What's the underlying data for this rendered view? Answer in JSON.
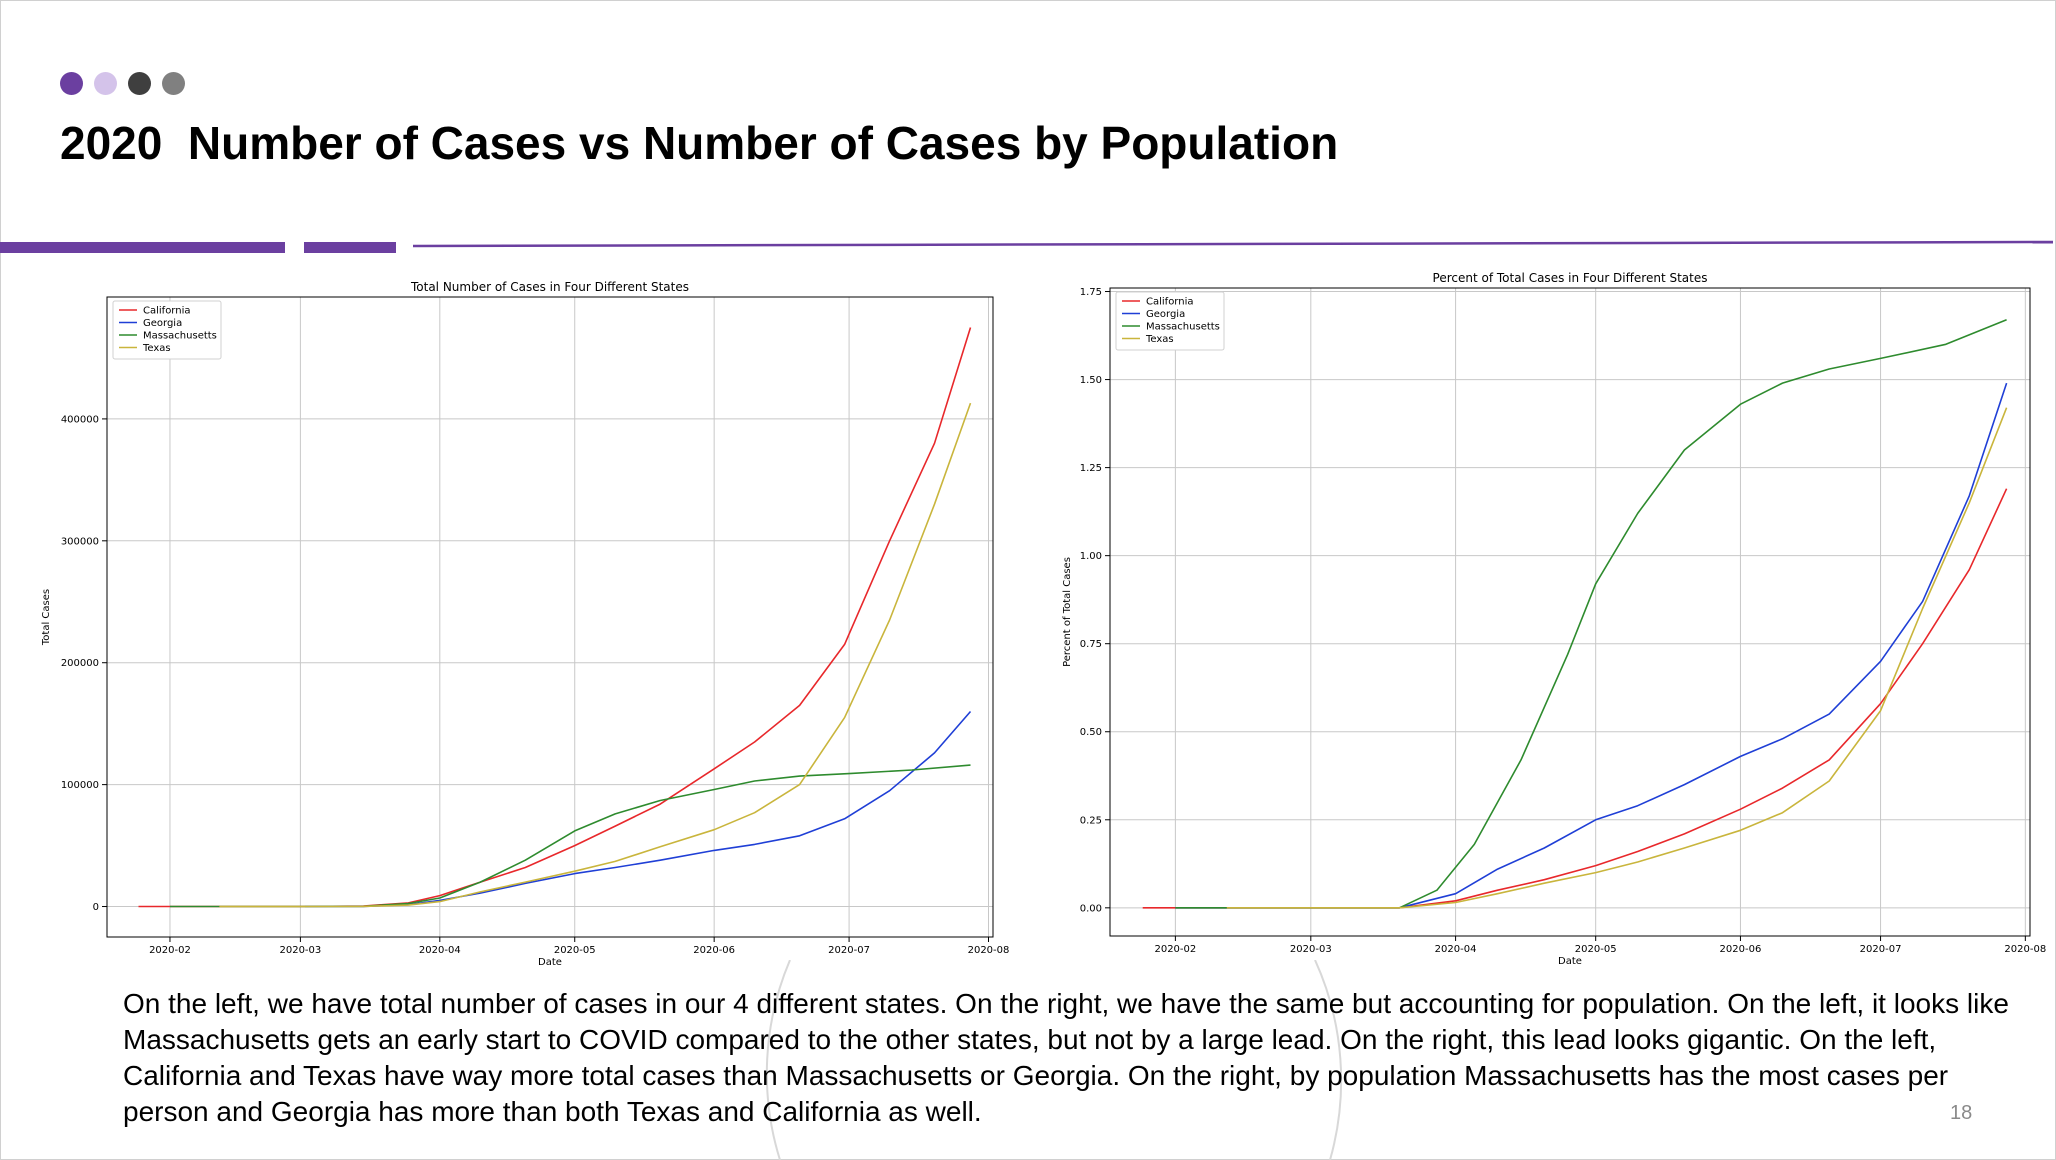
{
  "slide": {
    "title": "2020  Number of Cases vs Number of Cases by Population",
    "page_number": "18",
    "dot_colors": [
      "#6b3fa0",
      "#d4c3ea",
      "#3f3f3f",
      "#808080"
    ],
    "accent_color": "#6b3fa0",
    "body_text": "On the left, we have total number of cases in our 4 different states.  On the right, we have the same but accounting for population.  On the left, it looks like Massachusetts gets an early start to COVID compared to the other states, but not by a large lead.  On the right, this lead looks gigantic.  On the left, California and Texas have way more total cases than Massachusetts or Georgia.  On the right, by population Massachusetts has the most cases per person and Georgia has more than both Texas and California as well."
  },
  "chart_data": [
    {
      "type": "line",
      "title": "Total Number of Cases in Four Different States",
      "xlabel": "Date",
      "ylabel": "Total Cases",
      "x_ticks": [
        "2020-02",
        "2020-03",
        "2020-04",
        "2020-05",
        "2020-06",
        "2020-07",
        "2020-08"
      ],
      "y_ticks": [
        0,
        100000,
        200000,
        300000,
        400000
      ],
      "y_tick_labels": [
        "0",
        "100000",
        "200000",
        "300000",
        "400000"
      ],
      "xlim": [
        "2020-01-18",
        "2020-08-02"
      ],
      "ylim": [
        -25000,
        500000
      ],
      "grid": true,
      "legend_position": "upper left",
      "series": [
        {
          "name": "California",
          "color": "#e8282b",
          "points": [
            [
              "2020-01-25",
              0
            ],
            [
              "2020-02-15",
              20
            ],
            [
              "2020-03-01",
              60
            ],
            [
              "2020-03-15",
              400
            ],
            [
              "2020-03-25",
              3000
            ],
            [
              "2020-04-01",
              9000
            ],
            [
              "2020-04-10",
              20000
            ],
            [
              "2020-04-20",
              32000
            ],
            [
              "2020-05-01",
              50000
            ],
            [
              "2020-05-10",
              66000
            ],
            [
              "2020-05-20",
              84000
            ],
            [
              "2020-06-01",
              113000
            ],
            [
              "2020-06-10",
              135000
            ],
            [
              "2020-06-20",
              165000
            ],
            [
              "2020-06-30",
              215000
            ],
            [
              "2020-07-10",
              300000
            ],
            [
              "2020-07-20",
              380000
            ],
            [
              "2020-07-28",
              475000
            ]
          ]
        },
        {
          "name": "Georgia",
          "color": "#1f3fd6",
          "points": [
            [
              "2020-03-02",
              0
            ],
            [
              "2020-03-15",
              100
            ],
            [
              "2020-03-25",
              1500
            ],
            [
              "2020-04-01",
              5000
            ],
            [
              "2020-04-10",
              11000
            ],
            [
              "2020-04-20",
              19000
            ],
            [
              "2020-05-01",
              27000
            ],
            [
              "2020-05-10",
              32000
            ],
            [
              "2020-05-20",
              38000
            ],
            [
              "2020-06-01",
              46000
            ],
            [
              "2020-06-10",
              51000
            ],
            [
              "2020-06-20",
              58000
            ],
            [
              "2020-06-30",
              72000
            ],
            [
              "2020-07-10",
              95000
            ],
            [
              "2020-07-20",
              126000
            ],
            [
              "2020-07-28",
              160000
            ]
          ]
        },
        {
          "name": "Massachusetts",
          "color": "#2e8b2e",
          "points": [
            [
              "2020-02-01",
              0
            ],
            [
              "2020-03-01",
              0
            ],
            [
              "2020-03-15",
              200
            ],
            [
              "2020-03-25",
              2500
            ],
            [
              "2020-04-01",
              7000
            ],
            [
              "2020-04-10",
              20000
            ],
            [
              "2020-04-20",
              38000
            ],
            [
              "2020-05-01",
              62000
            ],
            [
              "2020-05-10",
              76000
            ],
            [
              "2020-05-20",
              87000
            ],
            [
              "2020-06-01",
              96000
            ],
            [
              "2020-06-10",
              103000
            ],
            [
              "2020-06-20",
              107000
            ],
            [
              "2020-07-01",
              109000
            ],
            [
              "2020-07-15",
              112000
            ],
            [
              "2020-07-28",
              116000
            ]
          ]
        },
        {
          "name": "Texas",
          "color": "#c9b53c",
          "points": [
            [
              "2020-02-12",
              0
            ],
            [
              "2020-03-05",
              0
            ],
            [
              "2020-03-15",
              100
            ],
            [
              "2020-03-25",
              1200
            ],
            [
              "2020-04-01",
              4000
            ],
            [
              "2020-04-10",
              12000
            ],
            [
              "2020-04-20",
              20000
            ],
            [
              "2020-05-01",
              29000
            ],
            [
              "2020-05-10",
              37000
            ],
            [
              "2020-05-20",
              49000
            ],
            [
              "2020-06-01",
              63000
            ],
            [
              "2020-06-10",
              77000
            ],
            [
              "2020-06-20",
              100000
            ],
            [
              "2020-06-30",
              155000
            ],
            [
              "2020-07-10",
              235000
            ],
            [
              "2020-07-20",
              330000
            ],
            [
              "2020-07-28",
              413000
            ]
          ]
        }
      ]
    },
    {
      "type": "line",
      "title": "Percent of Total Cases in Four Different States",
      "xlabel": "Date",
      "ylabel": "Percent of Total Cases",
      "x_ticks": [
        "2020-02",
        "2020-03",
        "2020-04",
        "2020-05",
        "2020-06",
        "2020-07",
        "2020-08"
      ],
      "y_ticks": [
        0,
        0.25,
        0.5,
        0.75,
        1.0,
        1.25,
        1.5,
        1.75
      ],
      "y_tick_labels": [
        "0.00",
        "0.25",
        "0.50",
        "0.75",
        "1.00",
        "1.25",
        "1.50",
        "1.75"
      ],
      "xlim": [
        "2020-01-18",
        "2020-08-02"
      ],
      "ylim": [
        -0.08,
        1.76
      ],
      "grid": true,
      "legend_position": "upper left",
      "series": [
        {
          "name": "California",
          "color": "#e8282b",
          "points": [
            [
              "2020-01-25",
              0
            ],
            [
              "2020-03-20",
              0
            ],
            [
              "2020-04-01",
              0.02
            ],
            [
              "2020-04-10",
              0.05
            ],
            [
              "2020-04-20",
              0.08
            ],
            [
              "2020-05-01",
              0.12
            ],
            [
              "2020-05-10",
              0.16
            ],
            [
              "2020-05-20",
              0.21
            ],
            [
              "2020-06-01",
              0.28
            ],
            [
              "2020-06-10",
              0.34
            ],
            [
              "2020-06-20",
              0.42
            ],
            [
              "2020-07-01",
              0.58
            ],
            [
              "2020-07-10",
              0.75
            ],
            [
              "2020-07-20",
              0.96
            ],
            [
              "2020-07-28",
              1.19
            ]
          ]
        },
        {
          "name": "Georgia",
          "color": "#1f3fd6",
          "points": [
            [
              "2020-02-01",
              0
            ],
            [
              "2020-03-20",
              0
            ],
            [
              "2020-04-01",
              0.04
            ],
            [
              "2020-04-10",
              0.11
            ],
            [
              "2020-04-20",
              0.17
            ],
            [
              "2020-05-01",
              0.25
            ],
            [
              "2020-05-10",
              0.29
            ],
            [
              "2020-05-20",
              0.35
            ],
            [
              "2020-06-01",
              0.43
            ],
            [
              "2020-06-10",
              0.48
            ],
            [
              "2020-06-20",
              0.55
            ],
            [
              "2020-07-01",
              0.7
            ],
            [
              "2020-07-10",
              0.87
            ],
            [
              "2020-07-20",
              1.17
            ],
            [
              "2020-07-28",
              1.49
            ]
          ]
        },
        {
          "name": "Massachusetts",
          "color": "#2e8b2e",
          "points": [
            [
              "2020-02-01",
              0
            ],
            [
              "2020-03-20",
              0
            ],
            [
              "2020-03-28",
              0.05
            ],
            [
              "2020-04-05",
              0.18
            ],
            [
              "2020-04-15",
              0.42
            ],
            [
              "2020-04-25",
              0.72
            ],
            [
              "2020-05-01",
              0.92
            ],
            [
              "2020-05-10",
              1.12
            ],
            [
              "2020-05-20",
              1.3
            ],
            [
              "2020-06-01",
              1.43
            ],
            [
              "2020-06-10",
              1.49
            ],
            [
              "2020-06-20",
              1.53
            ],
            [
              "2020-07-01",
              1.56
            ],
            [
              "2020-07-15",
              1.6
            ],
            [
              "2020-07-28",
              1.67
            ]
          ]
        },
        {
          "name": "Texas",
          "color": "#c9b53c",
          "points": [
            [
              "2020-02-12",
              0
            ],
            [
              "2020-03-20",
              0
            ],
            [
              "2020-04-01",
              0.015
            ],
            [
              "2020-04-10",
              0.04
            ],
            [
              "2020-04-20",
              0.07
            ],
            [
              "2020-05-01",
              0.1
            ],
            [
              "2020-05-10",
              0.13
            ],
            [
              "2020-05-20",
              0.17
            ],
            [
              "2020-06-01",
              0.22
            ],
            [
              "2020-06-10",
              0.27
            ],
            [
              "2020-06-20",
              0.36
            ],
            [
              "2020-07-01",
              0.56
            ],
            [
              "2020-07-10",
              0.85
            ],
            [
              "2020-07-20",
              1.15
            ],
            [
              "2020-07-28",
              1.42
            ]
          ]
        }
      ]
    }
  ]
}
